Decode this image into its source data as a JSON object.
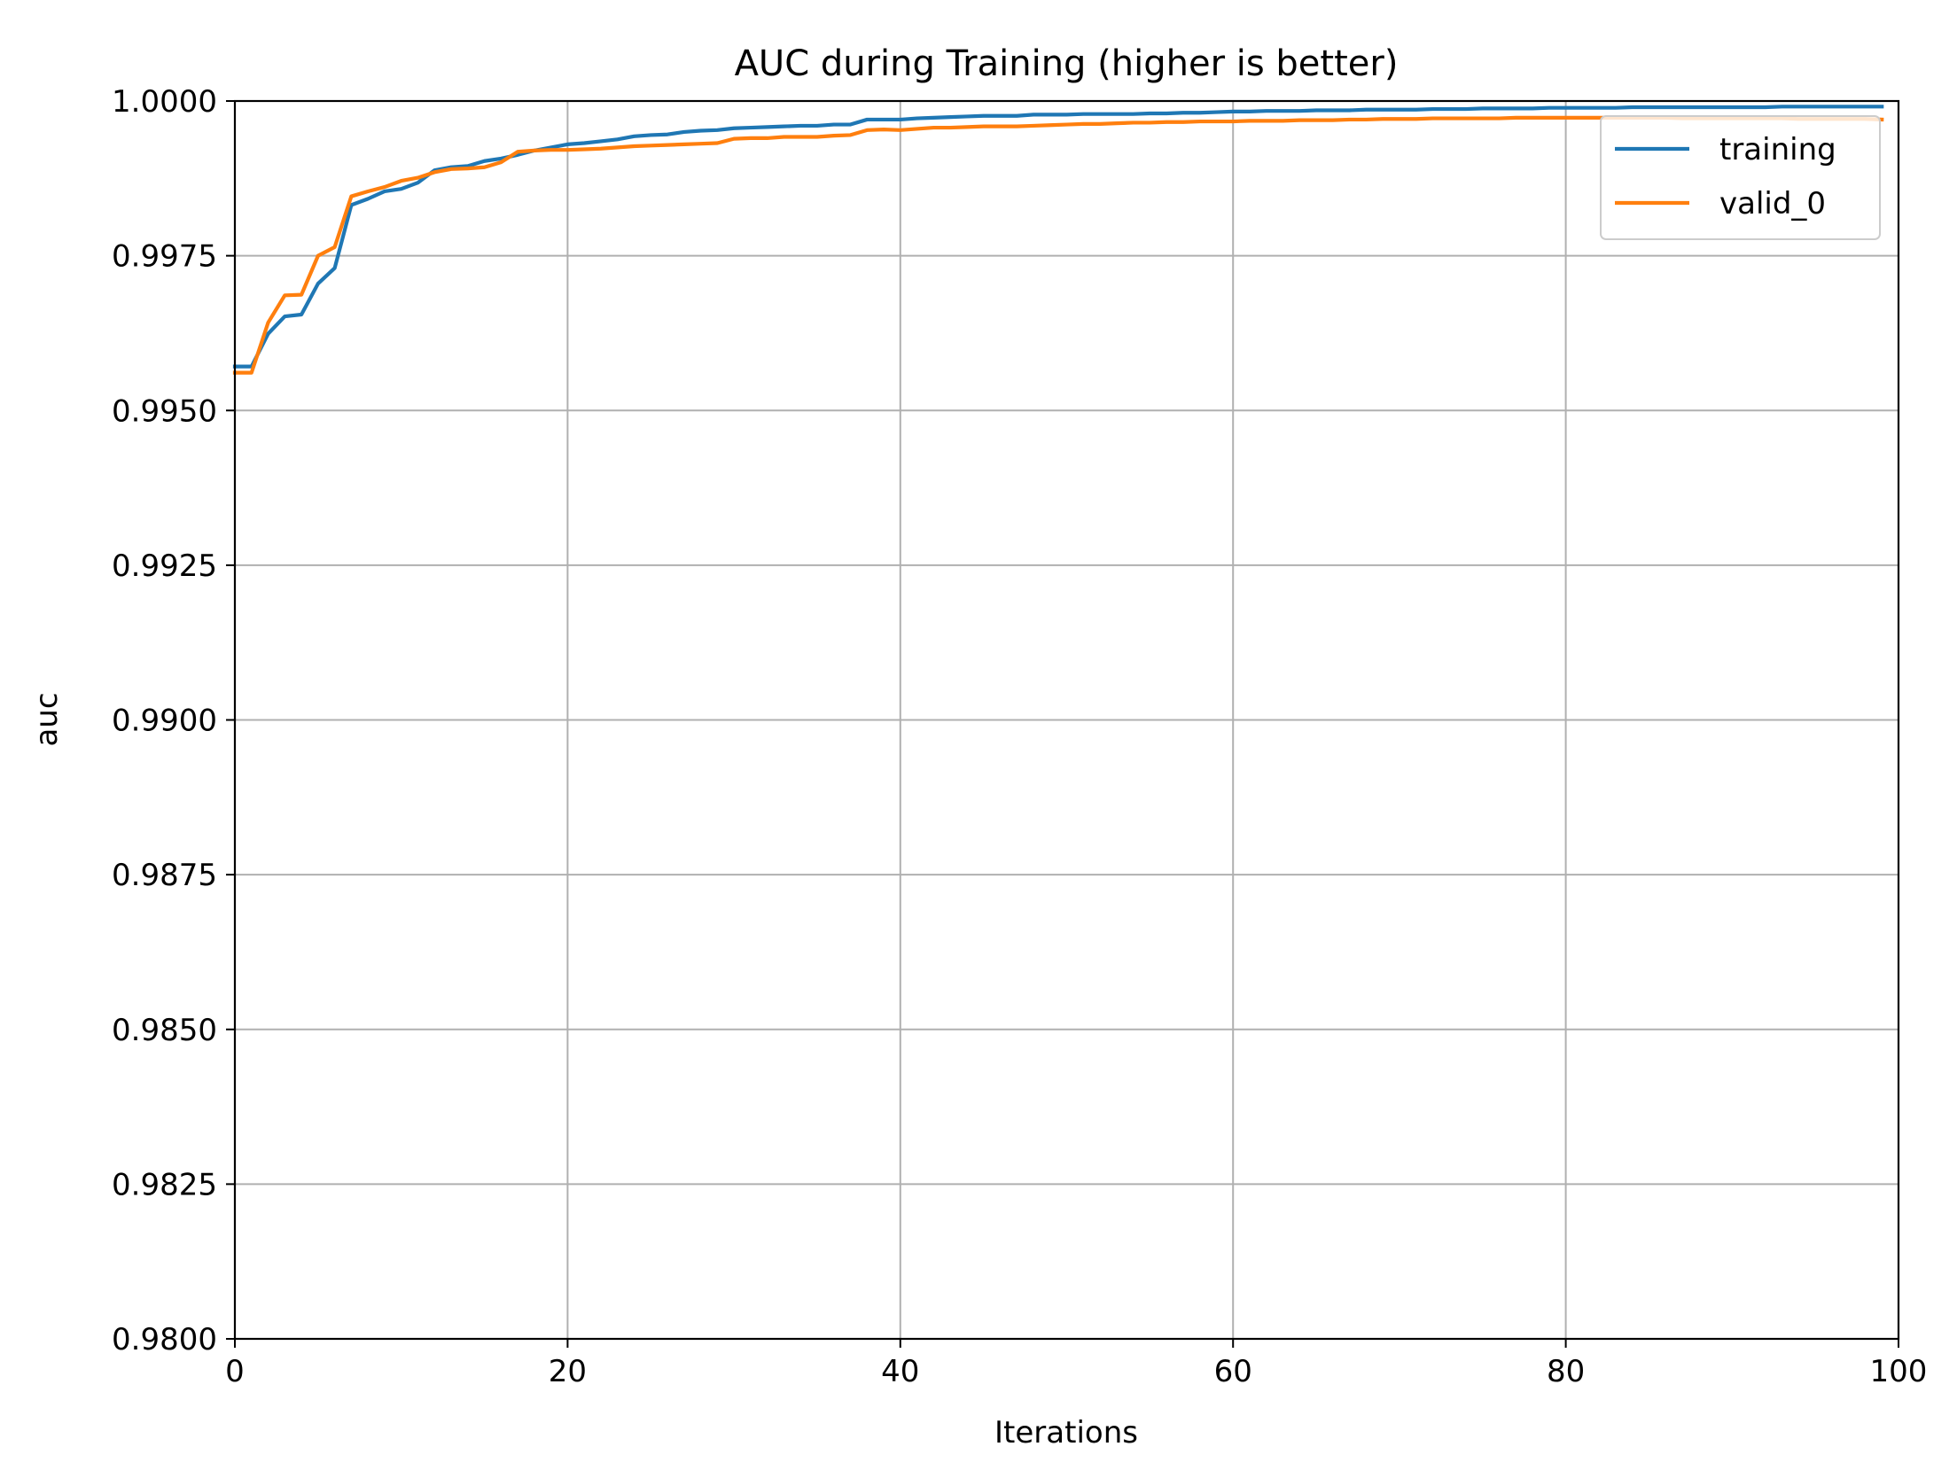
{
  "chart_data": {
    "type": "line",
    "title": "AUC during Training (higher is better)",
    "xlabel": "Iterations",
    "ylabel": "auc",
    "xlim": [
      0,
      100
    ],
    "ylim": [
      0.98,
      1.0
    ],
    "grid": true,
    "legend_position": "top-right",
    "x_ticks": [
      0,
      20,
      40,
      60,
      80,
      100
    ],
    "x_tick_labels": [
      "0",
      "20",
      "40",
      "60",
      "80",
      "100"
    ],
    "y_ticks": [
      0.98,
      0.9825,
      0.985,
      0.9875,
      0.99,
      0.9925,
      0.995,
      0.9975,
      1.0
    ],
    "y_tick_labels": [
      "0.9800",
      "0.9825",
      "0.9850",
      "0.9875",
      "0.9900",
      "0.9925",
      "0.9950",
      "0.9975",
      "1.0000"
    ],
    "series": [
      {
        "name": "training",
        "color": "#1f77b4",
        "x": [
          0,
          1,
          2,
          3,
          4,
          5,
          6,
          7,
          8,
          9,
          10,
          11,
          12,
          13,
          14,
          15,
          16,
          17,
          18,
          19,
          20,
          21,
          22,
          23,
          24,
          25,
          26,
          27,
          28,
          29,
          30,
          31,
          32,
          33,
          34,
          35,
          36,
          37,
          38,
          39,
          40,
          41,
          42,
          43,
          44,
          45,
          46,
          47,
          48,
          49,
          50,
          51,
          52,
          53,
          54,
          55,
          56,
          57,
          58,
          59,
          60,
          61,
          62,
          63,
          64,
          65,
          66,
          67,
          68,
          69,
          70,
          71,
          72,
          73,
          74,
          75,
          76,
          77,
          78,
          79,
          80,
          81,
          82,
          83,
          84,
          85,
          86,
          87,
          88,
          89,
          90,
          91,
          92,
          93,
          94,
          95,
          96,
          97,
          98,
          99
        ],
        "y": [
          0.99571,
          0.99571,
          0.99624,
          0.99652,
          0.99655,
          0.99705,
          0.9973,
          0.99832,
          0.99842,
          0.99854,
          0.99858,
          0.99868,
          0.99888,
          0.99893,
          0.99895,
          0.99903,
          0.99907,
          0.99913,
          0.9992,
          0.99925,
          0.9993,
          0.99932,
          0.99935,
          0.99938,
          0.99943,
          0.99945,
          0.99946,
          0.9995,
          0.99952,
          0.99953,
          0.99956,
          0.99957,
          0.99958,
          0.99959,
          0.9996,
          0.9996,
          0.99962,
          0.99962,
          0.9997,
          0.9997,
          0.9997,
          0.99972,
          0.99973,
          0.99974,
          0.99975,
          0.99976,
          0.99976,
          0.99976,
          0.99978,
          0.99978,
          0.99978,
          0.99979,
          0.99979,
          0.99979,
          0.99979,
          0.9998,
          0.9998,
          0.99981,
          0.99981,
          0.99982,
          0.99983,
          0.99983,
          0.99984,
          0.99984,
          0.99984,
          0.99985,
          0.99985,
          0.99985,
          0.99986,
          0.99986,
          0.99986,
          0.99986,
          0.99987,
          0.99987,
          0.99987,
          0.99988,
          0.99988,
          0.99988,
          0.99988,
          0.99989,
          0.99989,
          0.99989,
          0.99989,
          0.99989,
          0.9999,
          0.9999,
          0.9999,
          0.9999,
          0.9999,
          0.9999,
          0.9999,
          0.9999,
          0.9999,
          0.99991,
          0.99991,
          0.99991,
          0.99991,
          0.99991,
          0.99991,
          0.99991
        ]
      },
      {
        "name": "valid_0",
        "color": "#ff7f0e",
        "x": [
          0,
          1,
          2,
          3,
          4,
          5,
          6,
          7,
          8,
          9,
          10,
          11,
          12,
          13,
          14,
          15,
          16,
          17,
          18,
          19,
          20,
          21,
          22,
          23,
          24,
          25,
          26,
          27,
          28,
          29,
          30,
          31,
          32,
          33,
          34,
          35,
          36,
          37,
          38,
          39,
          40,
          41,
          42,
          43,
          44,
          45,
          46,
          47,
          48,
          49,
          50,
          51,
          52,
          53,
          54,
          55,
          56,
          57,
          58,
          59,
          60,
          61,
          62,
          63,
          64,
          65,
          66,
          67,
          68,
          69,
          70,
          71,
          72,
          73,
          74,
          75,
          76,
          77,
          78,
          79,
          80,
          81,
          82,
          83,
          84,
          85,
          86,
          87,
          88,
          89,
          90,
          91,
          92,
          93,
          94,
          95,
          96,
          97,
          98,
          99
        ],
        "y": [
          0.99561,
          0.99561,
          0.99642,
          0.99686,
          0.99687,
          0.9975,
          0.99764,
          0.99846,
          0.99854,
          0.99861,
          0.99871,
          0.99876,
          0.99885,
          0.9989,
          0.99891,
          0.99893,
          0.99901,
          0.99918,
          0.9992,
          0.99921,
          0.99921,
          0.99922,
          0.99923,
          0.99925,
          0.99927,
          0.99928,
          0.99929,
          0.9993,
          0.99931,
          0.99932,
          0.99939,
          0.9994,
          0.9994,
          0.99942,
          0.99942,
          0.99942,
          0.99944,
          0.99945,
          0.99953,
          0.99954,
          0.99953,
          0.99955,
          0.99957,
          0.99957,
          0.99958,
          0.99959,
          0.99959,
          0.99959,
          0.9996,
          0.99961,
          0.99962,
          0.99963,
          0.99963,
          0.99964,
          0.99965,
          0.99965,
          0.99966,
          0.99966,
          0.99967,
          0.99967,
          0.99967,
          0.99968,
          0.99968,
          0.99968,
          0.99969,
          0.99969,
          0.99969,
          0.9997,
          0.9997,
          0.99971,
          0.99971,
          0.99971,
          0.99972,
          0.99972,
          0.99972,
          0.99972,
          0.99972,
          0.99973,
          0.99973,
          0.99973,
          0.99973,
          0.99973,
          0.99973,
          0.99973,
          0.99973,
          0.99973,
          0.99973,
          0.99972,
          0.99972,
          0.99972,
          0.99972,
          0.99972,
          0.99972,
          0.99972,
          0.99971,
          0.99971,
          0.99971,
          0.99971,
          0.99971,
          0.9997
        ]
      }
    ]
  }
}
